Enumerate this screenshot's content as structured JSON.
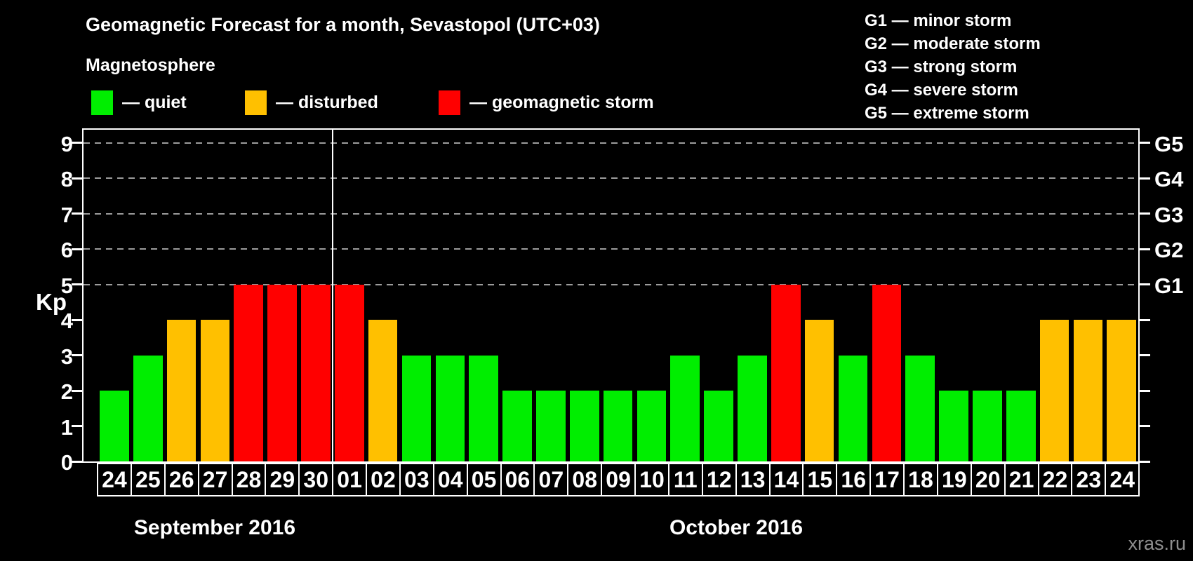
{
  "title": "Geomagnetic Forecast for a month, Sevastopol (UTC+03)",
  "subtitle": "Magnetosphere",
  "watermark": "xras.ru",
  "colors": {
    "background": "#000000",
    "quiet": "#00ee00",
    "disturbed": "#ffc000",
    "storm": "#ff0000",
    "axis": "#ffffff",
    "grid": "#9c9c9c",
    "text": "#ffffff",
    "watermark": "#8f8f8f"
  },
  "legend": {
    "items": [
      {
        "status": "quiet",
        "label": "— quiet"
      },
      {
        "status": "disturbed",
        "label": "— disturbed"
      },
      {
        "status": "storm",
        "label": "— geomagnetic storm"
      }
    ]
  },
  "g_legend": [
    "G1 — minor storm",
    "G2 — moderate storm",
    "G3 — strong storm",
    "G4 — severe storm",
    "G5 — extreme storm"
  ],
  "chart_data": {
    "type": "bar",
    "title": "Geomagnetic Forecast for a month, Sevastopol (UTC+03)",
    "ylabel": "Kp",
    "ylim": [
      0,
      9
    ],
    "yticks": [
      0,
      1,
      2,
      3,
      4,
      5,
      6,
      7,
      8,
      9
    ],
    "grid_levels": [
      5,
      6,
      7,
      8,
      9
    ],
    "grid_style": "dashed",
    "legend_position": "top",
    "right_axis_labels": [
      {
        "level": 5,
        "label": "G1"
      },
      {
        "level": 6,
        "label": "G2"
      },
      {
        "level": 7,
        "label": "G3"
      },
      {
        "level": 8,
        "label": "G4"
      },
      {
        "level": 9,
        "label": "G5"
      }
    ],
    "months": [
      {
        "label": "September 2016",
        "start_index": 0,
        "days": 7
      },
      {
        "label": "October 2016",
        "start_index": 7,
        "days": 24
      }
    ],
    "separator_after_index": 6,
    "bars": [
      {
        "day": "24",
        "kp": 2,
        "status": "quiet"
      },
      {
        "day": "25",
        "kp": 3,
        "status": "quiet"
      },
      {
        "day": "26",
        "kp": 4,
        "status": "disturbed"
      },
      {
        "day": "27",
        "kp": 4,
        "status": "disturbed"
      },
      {
        "day": "28",
        "kp": 5,
        "status": "storm"
      },
      {
        "day": "29",
        "kp": 5,
        "status": "storm"
      },
      {
        "day": "30",
        "kp": 5,
        "status": "storm"
      },
      {
        "day": "01",
        "kp": 5,
        "status": "storm"
      },
      {
        "day": "02",
        "kp": 4,
        "status": "disturbed"
      },
      {
        "day": "03",
        "kp": 3,
        "status": "quiet"
      },
      {
        "day": "04",
        "kp": 3,
        "status": "quiet"
      },
      {
        "day": "05",
        "kp": 3,
        "status": "quiet"
      },
      {
        "day": "06",
        "kp": 2,
        "status": "quiet"
      },
      {
        "day": "07",
        "kp": 2,
        "status": "quiet"
      },
      {
        "day": "08",
        "kp": 2,
        "status": "quiet"
      },
      {
        "day": "09",
        "kp": 2,
        "status": "quiet"
      },
      {
        "day": "10",
        "kp": 2,
        "status": "quiet"
      },
      {
        "day": "11",
        "kp": 3,
        "status": "quiet"
      },
      {
        "day": "12",
        "kp": 2,
        "status": "quiet"
      },
      {
        "day": "13",
        "kp": 3,
        "status": "quiet"
      },
      {
        "day": "14",
        "kp": 5,
        "status": "storm"
      },
      {
        "day": "15",
        "kp": 4,
        "status": "disturbed"
      },
      {
        "day": "16",
        "kp": 3,
        "status": "quiet"
      },
      {
        "day": "17",
        "kp": 5,
        "status": "storm"
      },
      {
        "day": "18",
        "kp": 3,
        "status": "quiet"
      },
      {
        "day": "19",
        "kp": 2,
        "status": "quiet"
      },
      {
        "day": "20",
        "kp": 2,
        "status": "quiet"
      },
      {
        "day": "21",
        "kp": 2,
        "status": "quiet"
      },
      {
        "day": "22",
        "kp": 4,
        "status": "disturbed"
      },
      {
        "day": "23",
        "kp": 4,
        "status": "disturbed"
      },
      {
        "day": "24",
        "kp": 4,
        "status": "disturbed"
      }
    ]
  }
}
